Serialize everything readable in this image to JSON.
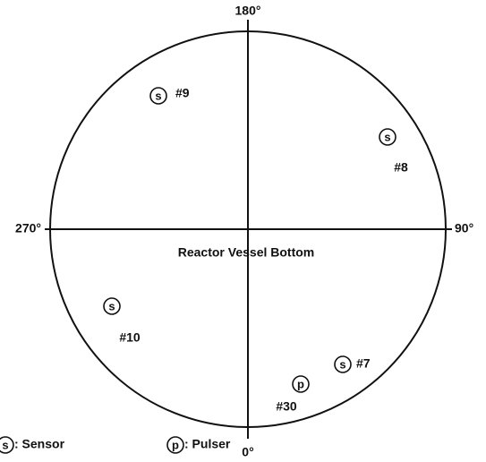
{
  "axes": {
    "top": "180°",
    "right": "90°",
    "bottom": "0°",
    "left": "270°"
  },
  "center_label": "Reactor Vessel Bottom",
  "markers": [
    {
      "symbol": "s",
      "label": "#9"
    },
    {
      "symbol": "s",
      "label": "#8"
    },
    {
      "symbol": "s",
      "label": "#10"
    },
    {
      "symbol": "s",
      "label": "#7"
    },
    {
      "symbol": "p",
      "label": "#30"
    }
  ],
  "legend": [
    {
      "symbol": "s",
      "label": ": Sensor"
    },
    {
      "symbol": "p",
      "label": ": Pulser"
    }
  ]
}
